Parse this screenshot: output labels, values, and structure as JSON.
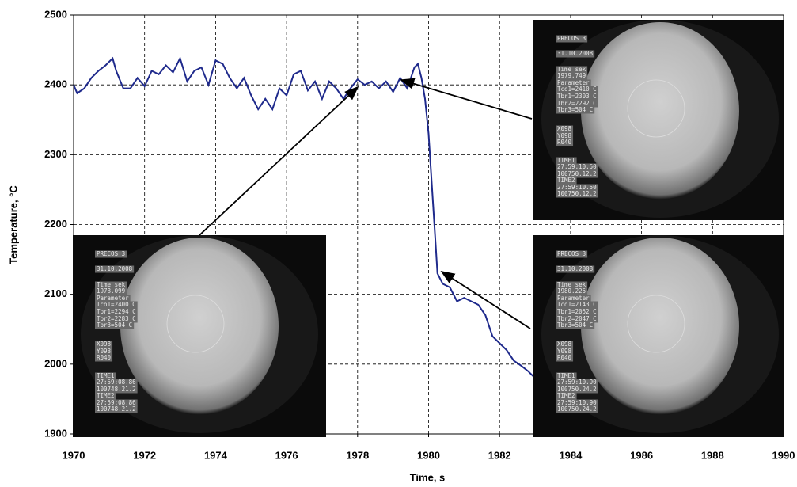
{
  "chart_data": {
    "type": "line",
    "x_label": "Time, s",
    "y_label": "Temperature, °C",
    "xlim": [
      1970,
      1990
    ],
    "ylim": [
      1900,
      2500
    ],
    "xticks": [
      1970,
      1972,
      1974,
      1976,
      1978,
      1980,
      1982,
      1984,
      1986,
      1988,
      1990
    ],
    "yticks": [
      1900,
      2000,
      2100,
      2200,
      2300,
      2400,
      2500
    ],
    "grid": true,
    "x": [
      1970.0,
      1970.1,
      1970.3,
      1970.5,
      1970.7,
      1970.9,
      1971.1,
      1971.2,
      1971.4,
      1971.6,
      1971.8,
      1972.0,
      1972.2,
      1972.4,
      1972.6,
      1972.8,
      1973.0,
      1973.2,
      1973.4,
      1973.6,
      1973.8,
      1974.0,
      1974.2,
      1974.4,
      1974.6,
      1974.8,
      1975.0,
      1975.2,
      1975.4,
      1975.6,
      1975.8,
      1976.0,
      1976.2,
      1976.4,
      1976.6,
      1976.8,
      1977.0,
      1977.2,
      1977.4,
      1977.6,
      1977.8,
      1978.0,
      1978.2,
      1978.4,
      1978.6,
      1978.8,
      1979.0,
      1979.2,
      1979.4,
      1979.5,
      1979.6,
      1979.7,
      1979.8,
      1979.9,
      1980.0,
      1980.1,
      1980.2,
      1980.25,
      1980.4,
      1980.6,
      1980.8,
      1981.0,
      1981.2,
      1981.4,
      1981.6,
      1981.8,
      1982.0,
      1982.2,
      1982.4,
      1982.6,
      1982.8,
      1983.0
    ],
    "series": [
      {
        "color": "#1f2a8c",
        "values": [
          2400,
          2388,
          2395,
          2410,
          2420,
          2428,
          2438,
          2420,
          2395,
          2395,
          2410,
          2398,
          2420,
          2415,
          2428,
          2418,
          2438,
          2405,
          2420,
          2425,
          2400,
          2435,
          2430,
          2410,
          2395,
          2410,
          2385,
          2365,
          2380,
          2365,
          2395,
          2385,
          2415,
          2420,
          2392,
          2405,
          2380,
          2405,
          2395,
          2380,
          2395,
          2408,
          2400,
          2405,
          2395,
          2405,
          2390,
          2410,
          2395,
          2410,
          2425,
          2430,
          2410,
          2380,
          2330,
          2250,
          2170,
          2130,
          2115,
          2110,
          2090,
          2095,
          2090,
          2085,
          2070,
          2040,
          2030,
          2020,
          2005,
          1998,
          1990,
          1980
        ]
      }
    ],
    "insets": [
      {
        "lines": [
          "PRECOS 3",
          "31.10.2008",
          "Time sek",
          "1979.749",
          "Parameter",
          "Tco1=2410 C",
          "Tbr1=2303 C",
          "Tbr2=2292 C",
          "Tbr3=504 C",
          "X098",
          "Y098",
          "R040",
          "TIME1",
          "27:59:10.50",
          "100750.12.2",
          "TIME2",
          "27:59:10.50",
          "100750.12.2"
        ]
      },
      {
        "lines": [
          "PRECOS 3",
          "31.10.2008",
          "Time sek",
          "1978.099",
          "Parameter",
          "Tco1=2400 C",
          "Tbr1=2294 C",
          "Tbr2=2283 C",
          "Tbr3=504 C",
          "X098",
          "Y098",
          "R040",
          "TIME1",
          "27:59:08.86",
          "100748.21.2",
          "TIME2",
          "27:59:08.86",
          "100748.21.2"
        ]
      },
      {
        "lines": [
          "PRECOS 3",
          "31.10.2008",
          "Time sek",
          "1980.225",
          "Parameter",
          "Tco1=2143 C",
          "Tbr1=2052 C",
          "Tbr2=2047 C",
          "Tbr3=504 C",
          "X098",
          "Y098",
          "R040",
          "TIME1",
          "27:59:10.90",
          "100750.24.2",
          "TIME2",
          "27:59:10.90",
          "100750.24.2"
        ]
      }
    ]
  }
}
